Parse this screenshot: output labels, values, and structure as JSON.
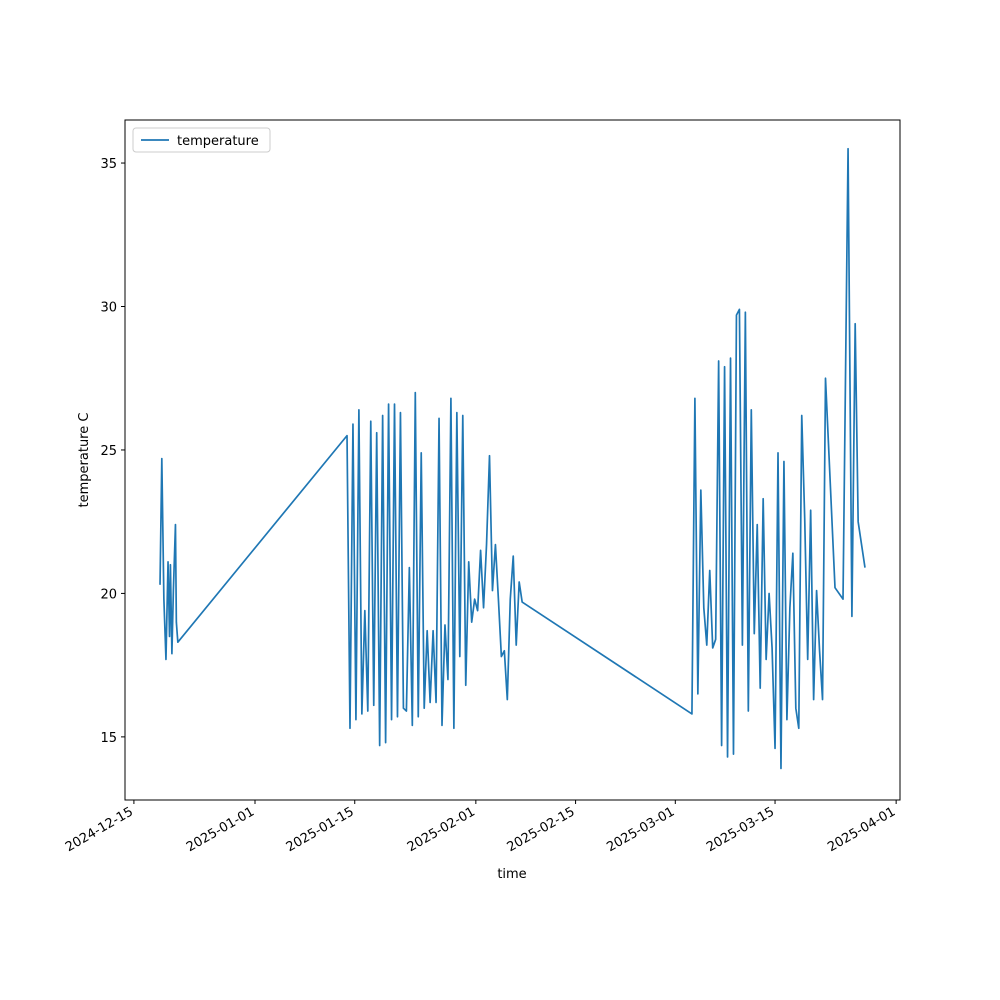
{
  "chart_data": {
    "type": "line",
    "xlabel": "time",
    "ylabel": "temperature C",
    "x": [
      "2024-12-18 16:00",
      "2024-12-18 22:00",
      "2024-12-19 05:00",
      "2024-12-19 12:00",
      "2024-12-19 19:00",
      "2024-12-20 00:00",
      "2024-12-20 03:00",
      "2024-12-20 08:00",
      "2024-12-20 13:00",
      "2024-12-20 20:00",
      "2024-12-20 23:00",
      "2024-12-21 04:00",
      "2025-01-13 22:00",
      "2025-01-14 08:00",
      "2025-01-14 18:00",
      "2025-01-15 04:00",
      "2025-01-15 14:00",
      "2025-01-16 00:00",
      "2025-01-16 10:00",
      "2025-01-16 20:00",
      "2025-01-17 06:00",
      "2025-01-17 16:00",
      "2025-01-18 02:00",
      "2025-01-18 12:00",
      "2025-01-18 22:00",
      "2025-01-19 08:00",
      "2025-01-19 18:00",
      "2025-01-20 04:00",
      "2025-01-20 14:00",
      "2025-01-21 00:00",
      "2025-01-21 10:00",
      "2025-01-21 20:00",
      "2025-01-22 06:00",
      "2025-01-22 16:00",
      "2025-01-23 02:00",
      "2025-01-23 12:00",
      "2025-01-23 22:00",
      "2025-01-24 08:00",
      "2025-01-24 18:00",
      "2025-01-25 04:00",
      "2025-01-25 14:00",
      "2025-01-26 00:00",
      "2025-01-26 10:00",
      "2025-01-26 20:00",
      "2025-01-27 06:00",
      "2025-01-27 16:00",
      "2025-01-28 02:00",
      "2025-01-28 12:00",
      "2025-01-28 22:00",
      "2025-01-29 08:00",
      "2025-01-29 18:00",
      "2025-01-30 04:00",
      "2025-01-30 14:00",
      "2025-01-31 00:00",
      "2025-01-31 10:00",
      "2025-01-31 20:00",
      "2025-02-01 06:00",
      "2025-02-01 16:00",
      "2025-02-02 02:00",
      "2025-02-02 12:00",
      "2025-02-02 22:00",
      "2025-02-03 08:00",
      "2025-02-03 18:00",
      "2025-02-04 04:00",
      "2025-02-04 14:00",
      "2025-02-05 00:00",
      "2025-02-05 10:00",
      "2025-02-05 20:00",
      "2025-02-06 06:00",
      "2025-02-06 16:00",
      "2025-02-07 02:00",
      "2025-02-07 12:00",
      "2025-03-03 08:00",
      "2025-03-03 18:00",
      "2025-03-04 04:00",
      "2025-03-04 14:00",
      "2025-03-05 00:00",
      "2025-03-05 10:00",
      "2025-03-05 20:00",
      "2025-03-06 06:00",
      "2025-03-06 16:00",
      "2025-03-07 02:00",
      "2025-03-07 12:00",
      "2025-03-07 22:00",
      "2025-03-08 08:00",
      "2025-03-08 18:00",
      "2025-03-09 04:00",
      "2025-03-09 14:00",
      "2025-03-10 00:00",
      "2025-03-10 10:00",
      "2025-03-10 20:00",
      "2025-03-11 06:00",
      "2025-03-11 16:00",
      "2025-03-12 02:00",
      "2025-03-12 12:00",
      "2025-03-12 22:00",
      "2025-03-13 08:00",
      "2025-03-13 18:00",
      "2025-03-14 04:00",
      "2025-03-14 14:00",
      "2025-03-15 00:00",
      "2025-03-15 10:00",
      "2025-03-15 20:00",
      "2025-03-16 06:00",
      "2025-03-16 16:00",
      "2025-03-17 02:00",
      "2025-03-17 12:00",
      "2025-03-17 22:00",
      "2025-03-18 08:00",
      "2025-03-18 18:00",
      "2025-03-19 04:00",
      "2025-03-19 14:00",
      "2025-03-20 00:00",
      "2025-03-20 10:00",
      "2025-03-20 20:00",
      "2025-03-21 06:00",
      "2025-03-21 16:00",
      "2025-03-22 02:00",
      "2025-03-23 10:00",
      "2025-03-24 13:00",
      "2025-03-25 06:00",
      "2025-03-25 19:00",
      "2025-03-26 06:00",
      "2025-03-26 16:00",
      "2025-03-27 15:00"
    ],
    "series": [
      {
        "name": "temperature",
        "color": "#1f77b4",
        "values": [
          20.3,
          24.7,
          19.8,
          17.7,
          21.1,
          18.5,
          21.0,
          17.9,
          20.1,
          22.4,
          19.0,
          18.3,
          25.5,
          15.3,
          25.9,
          15.6,
          26.4,
          15.8,
          19.4,
          15.9,
          26.0,
          16.1,
          25.6,
          14.7,
          26.2,
          14.8,
          26.6,
          15.6,
          26.6,
          15.7,
          26.3,
          16.0,
          15.9,
          20.9,
          15.4,
          27.0,
          15.7,
          24.9,
          16.0,
          18.7,
          16.2,
          18.7,
          16.2,
          26.1,
          15.4,
          18.9,
          17.0,
          26.8,
          15.3,
          26.3,
          17.8,
          26.2,
          16.8,
          21.1,
          19.0,
          19.8,
          19.4,
          21.5,
          19.5,
          21.7,
          24.8,
          20.1,
          21.7,
          19.8,
          17.8,
          18.0,
          16.3,
          19.8,
          21.3,
          18.2,
          20.4,
          19.7,
          15.8,
          26.8,
          16.5,
          23.6,
          19.5,
          18.2,
          20.8,
          18.1,
          18.4,
          28.1,
          14.7,
          27.9,
          14.3,
          28.2,
          14.4,
          29.7,
          29.9,
          18.2,
          29.8,
          15.9,
          26.4,
          18.6,
          22.4,
          16.7,
          23.3,
          17.7,
          20.0,
          18.1,
          14.6,
          24.9,
          13.9,
          24.6,
          15.6,
          19.5,
          21.4,
          16.0,
          15.3,
          26.2,
          22.6,
          17.7,
          22.9,
          16.3,
          20.1,
          18.0,
          16.3,
          27.5,
          20.2,
          19.8,
          35.5,
          19.2,
          29.4,
          22.5,
          20.9
        ]
      }
    ],
    "xlim": [
      "2024-12-13 18:00",
      "2025-04-01 13:00"
    ],
    "xticks": [
      "2024-12-15",
      "2025-01-01",
      "2025-01-15",
      "2025-02-01",
      "2025-02-15",
      "2025-03-01",
      "2025-03-15",
      "2025-04-01"
    ],
    "ylim": [
      12.8,
      36.5
    ],
    "yticks": [
      15,
      20,
      25,
      30,
      35
    ],
    "grid": false,
    "legend": "upper left"
  }
}
